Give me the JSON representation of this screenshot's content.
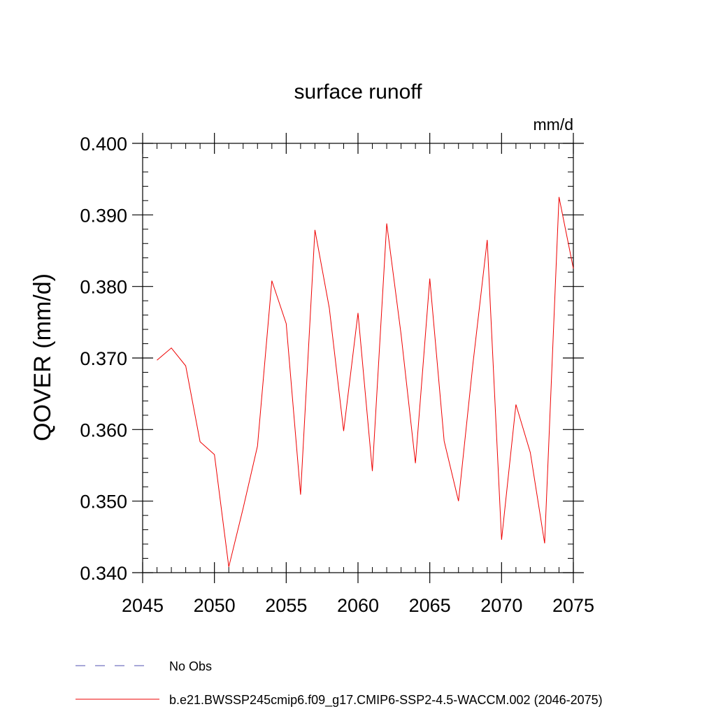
{
  "chart_data": {
    "type": "line",
    "title": "surface runoff",
    "units": "mm/d",
    "ylabel": "QOVER  (mm/d)",
    "xlabel": "",
    "xlim": [
      2045,
      2075
    ],
    "ylim": [
      0.34,
      0.4
    ],
    "x_ticks": [
      2045,
      2050,
      2055,
      2060,
      2065,
      2070,
      2075
    ],
    "x_tick_labels": [
      "2045",
      "2050",
      "2055",
      "2060",
      "2065",
      "2070",
      "2075"
    ],
    "y_ticks": [
      0.34,
      0.35,
      0.36,
      0.37,
      0.38,
      0.39,
      0.4
    ],
    "y_tick_labels": [
      "0.340",
      "0.350",
      "0.360",
      "0.370",
      "0.380",
      "0.390",
      "0.400"
    ],
    "x_minor_step": 1,
    "y_minor_step": 0.002,
    "grid": false,
    "legend_position": "bottom",
    "series": [
      {
        "name": "No Obs",
        "color": "#5050b0",
        "dash": "dashed",
        "x": [],
        "values": []
      },
      {
        "name": "b.e21.BWSSP245cmip6.f09_g17.CMIP6-SSP2-4.5-WACCM.002 (2046-2075)",
        "color": "#ee0000",
        "dash": "solid",
        "x": [
          2046,
          2047,
          2048,
          2049,
          2050,
          2051,
          2052,
          2053,
          2054,
          2055,
          2056,
          2057,
          2058,
          2059,
          2060,
          2061,
          2062,
          2063,
          2064,
          2065,
          2066,
          2067,
          2068,
          2069,
          2070,
          2071,
          2072,
          2073,
          2074,
          2075
        ],
        "values": [
          0.3697,
          0.3714,
          0.3689,
          0.3583,
          0.3565,
          0.3408,
          0.349,
          0.3577,
          0.3808,
          0.3748,
          0.3509,
          0.3879,
          0.377,
          0.3598,
          0.3763,
          0.3542,
          0.3888,
          0.3733,
          0.3553,
          0.3811,
          0.3584,
          0.35,
          0.3691,
          0.3865,
          0.3446,
          0.3635,
          0.3568,
          0.3441,
          0.3925,
          0.3825
        ]
      }
    ]
  }
}
